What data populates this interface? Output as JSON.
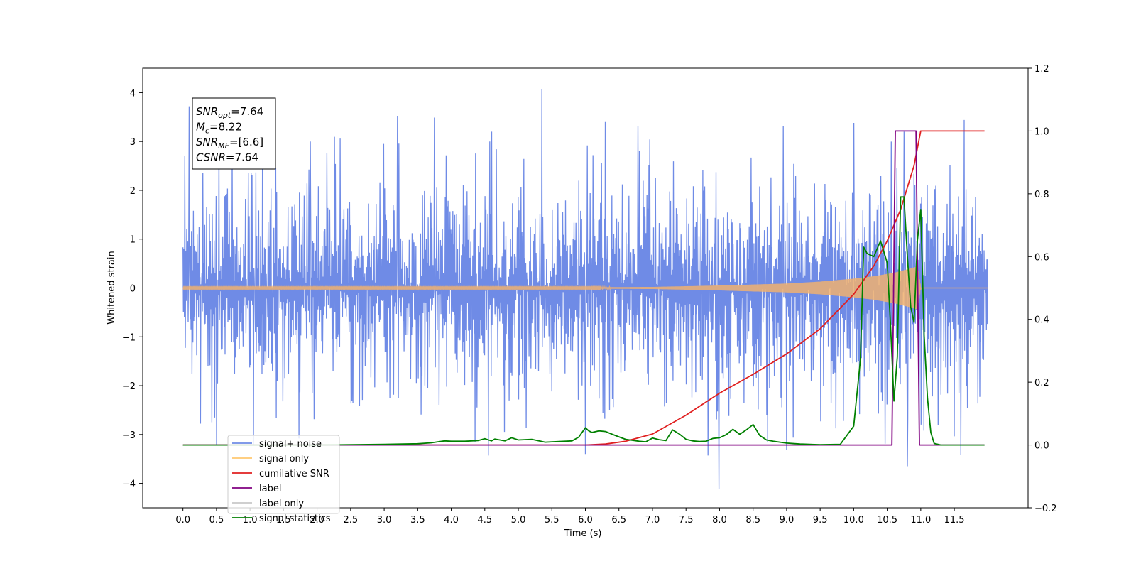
{
  "chart_data": {
    "type": "line",
    "title": "",
    "xlabel": "Time (s)",
    "ylabel": "Whitened strain",
    "ylabel_right": "",
    "xlim": [
      -0.6,
      12.6
    ],
    "ylim": [
      -4.5,
      4.5
    ],
    "ylim_right": [
      -0.2,
      1.2
    ],
    "x_ticks": [
      0.0,
      0.5,
      1.0,
      1.5,
      2.0,
      2.5,
      3.0,
      3.5,
      4.0,
      4.5,
      5.0,
      5.5,
      6.0,
      6.5,
      7.0,
      7.5,
      8.0,
      8.5,
      9.0,
      9.5,
      10.0,
      10.5,
      11.0,
      11.5
    ],
    "x_tick_labels": [
      "0.0",
      "0.5",
      "1.0",
      "1.5",
      "2.0",
      "2.5",
      "3.0",
      "3.5",
      "4.0",
      "4.5",
      "5.0",
      "5.5",
      "6.0",
      "6.5",
      "7.0",
      "7.5",
      "8.0",
      "8.5",
      "9.0",
      "9.5",
      "10.0",
      "10.5",
      "11.0",
      "11.5"
    ],
    "y_ticks": [
      -4,
      -3,
      -2,
      -1,
      0,
      1,
      2,
      3,
      4
    ],
    "y_tick_labels": [
      "−4",
      "−3",
      "−2",
      "−1",
      "0",
      "1",
      "2",
      "3",
      "4"
    ],
    "y_right_ticks": [
      -0.2,
      0.0,
      0.2,
      0.4,
      0.6,
      0.8,
      1.0,
      1.2
    ],
    "y_right_tick_labels": [
      "−0.2",
      "0.0",
      "0.2",
      "0.4",
      "0.6",
      "0.8",
      "1.0",
      "1.2"
    ],
    "grid": false,
    "legend_position": "bottom-left",
    "annotation": {
      "lines": [
        {
          "base": "SNR",
          "sub": "opt",
          "value": "=7.64"
        },
        {
          "base": "M",
          "sub": "c",
          "value": "=8.22"
        },
        {
          "base": "SNR",
          "sub": "MF",
          "value": "=[6.6]"
        },
        {
          "base": "CSNR",
          "sub": "",
          "value": "=7.64"
        }
      ]
    },
    "series": [
      {
        "name": "signal+ noise",
        "axis": "left",
        "color": "#6f8be6",
        "style": "noise",
        "x_range": [
          0.0,
          12.0
        ],
        "typical_band": [
          -1.9,
          1.9
        ],
        "peaks_up": [
          [
            0.09,
            3.72
          ],
          [
            1.9,
            3.0
          ],
          [
            3.2,
            3.52
          ],
          [
            3.75,
            3.49
          ],
          [
            4.6,
            3.2
          ],
          [
            5.35,
            4.07
          ],
          [
            6.3,
            3.4
          ],
          [
            6.78,
            3.32
          ],
          [
            10.0,
            3.38
          ],
          [
            10.75,
            3.2
          ],
          [
            11.65,
            3.44
          ]
        ],
        "peaks_down": [
          [
            0.5,
            -3.2
          ],
          [
            1.05,
            -3.2
          ],
          [
            4.55,
            -3.43
          ],
          [
            6.0,
            -3.4
          ],
          [
            7.83,
            -3.43
          ],
          [
            7.99,
            -4.12
          ],
          [
            9.0,
            -3.32
          ],
          [
            10.8,
            -3.65
          ],
          [
            11.6,
            -3.42
          ]
        ]
      },
      {
        "name": "signal only",
        "axis": "left",
        "color": "#f0b070",
        "style": "chirp",
        "x": [
          0.0,
          6.0,
          7.0,
          8.0,
          9.0,
          9.5,
          10.0,
          10.3,
          10.6,
          10.8,
          10.95,
          11.0,
          12.0
        ],
        "envelope": [
          0.01,
          0.01,
          0.02,
          0.05,
          0.09,
          0.13,
          0.19,
          0.24,
          0.31,
          0.38,
          0.44,
          0.0,
          0.0
        ]
      },
      {
        "name": "cumilative SNR",
        "axis": "right",
        "color": "#e02020",
        "x": [
          0.0,
          6.0,
          6.3,
          6.6,
          7.0,
          7.5,
          8.0,
          8.5,
          9.0,
          9.5,
          10.0,
          10.3,
          10.5,
          10.7,
          10.9,
          11.0,
          11.95
        ],
        "values": [
          0.0,
          0.0,
          0.003,
          0.012,
          0.035,
          0.095,
          0.165,
          0.225,
          0.29,
          0.37,
          0.48,
          0.57,
          0.65,
          0.75,
          0.89,
          1.0,
          1.0
        ]
      },
      {
        "name": "label",
        "axis": "right",
        "color": "#800080",
        "x": [
          0.0,
          10.57,
          10.62,
          10.93,
          10.98,
          11.95
        ],
        "values": [
          0.0,
          0.0,
          1.0,
          1.0,
          0.0,
          0.0
        ]
      },
      {
        "name": "label only",
        "axis": "right",
        "color": "#c8c8c8",
        "x": [],
        "values": []
      },
      {
        "name": "signal statistics",
        "axis": "right",
        "color": "#008000",
        "x": [
          0.0,
          1.0,
          2.0,
          3.0,
          3.5,
          3.7,
          3.8,
          3.9,
          4.0,
          4.2,
          4.4,
          4.5,
          4.6,
          4.65,
          4.8,
          4.9,
          5.0,
          5.2,
          5.4,
          5.5,
          5.8,
          5.9,
          6.0,
          6.05,
          6.1,
          6.2,
          6.3,
          6.4,
          6.5,
          6.6,
          6.8,
          6.9,
          7.0,
          7.1,
          7.2,
          7.3,
          7.4,
          7.5,
          7.6,
          7.7,
          7.8,
          7.9,
          8.0,
          8.1,
          8.2,
          8.3,
          8.4,
          8.5,
          8.6,
          8.7,
          8.8,
          8.9,
          9.0,
          9.2,
          9.5,
          9.8,
          10.0,
          10.1,
          10.15,
          10.2,
          10.3,
          10.4,
          10.5,
          10.55,
          10.6,
          10.65,
          10.7,
          10.75,
          10.8,
          10.85,
          10.9,
          10.95,
          11.0,
          11.05,
          11.1,
          11.15,
          11.2,
          11.3,
          11.95
        ],
        "values": [
          0.0,
          0.0,
          0.0,
          0.002,
          0.004,
          0.007,
          0.01,
          0.013,
          0.012,
          0.012,
          0.014,
          0.02,
          0.013,
          0.019,
          0.013,
          0.023,
          0.016,
          0.018,
          0.009,
          0.01,
          0.013,
          0.025,
          0.055,
          0.045,
          0.04,
          0.045,
          0.043,
          0.034,
          0.026,
          0.018,
          0.012,
          0.01,
          0.022,
          0.017,
          0.014,
          0.048,
          0.035,
          0.018,
          0.013,
          0.011,
          0.012,
          0.021,
          0.023,
          0.033,
          0.05,
          0.034,
          0.048,
          0.065,
          0.03,
          0.016,
          0.012,
          0.009,
          0.006,
          0.003,
          0.001,
          0.002,
          0.06,
          0.27,
          0.63,
          0.61,
          0.6,
          0.65,
          0.58,
          0.38,
          0.14,
          0.28,
          0.79,
          0.79,
          0.6,
          0.44,
          0.39,
          0.65,
          0.75,
          0.35,
          0.15,
          0.04,
          0.005,
          0.0,
          0.0
        ]
      }
    ]
  }
}
